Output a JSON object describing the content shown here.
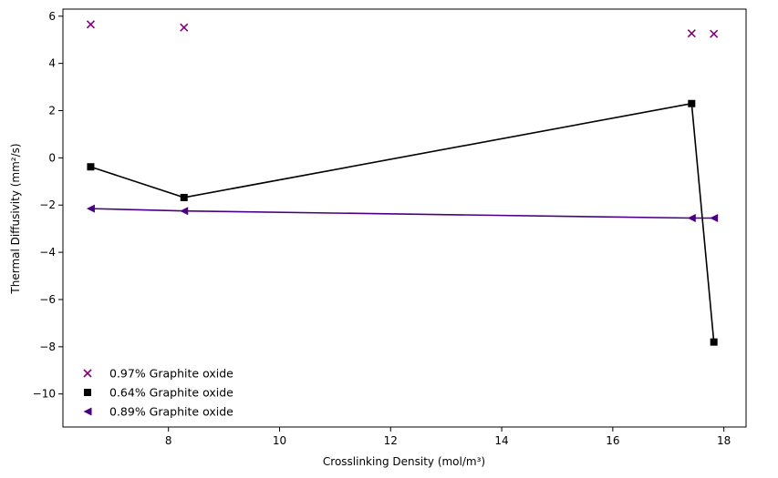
{
  "chart_data": {
    "type": "scatter",
    "xlabel": "Crosslinking Density (mol/m³)",
    "ylabel": "Thermal Diffusivity (mm²/s)",
    "xlim": [
      6.1,
      18.4
    ],
    "ylim": [
      -11.4,
      6.3
    ],
    "xticks": [
      8,
      10,
      12,
      14,
      16,
      18
    ],
    "yticks": [
      -10,
      -8,
      -6,
      -4,
      -2,
      0,
      2,
      4,
      6
    ],
    "grid": false,
    "legend_placement": "lower-left",
    "series": [
      {
        "name": "0.97% Graphite oxide",
        "marker": "x",
        "connected": false,
        "color": "#800080",
        "x": [
          6.6,
          8.28,
          17.42,
          17.82
        ],
        "y": [
          5.65,
          5.52,
          5.27,
          5.25
        ]
      },
      {
        "name": "0.64% Graphite oxide",
        "marker": "square",
        "connected": true,
        "color": "#000000",
        "x": [
          6.6,
          8.28,
          17.42,
          17.82
        ],
        "y": [
          -0.38,
          -1.68,
          2.3,
          -7.8
        ]
      },
      {
        "name": "0.89% Graphite oxide",
        "marker": "triangle-left",
        "connected": true,
        "color": "#4b0082",
        "x": [
          6.6,
          8.28,
          17.42,
          17.82
        ],
        "y": [
          -2.15,
          -2.25,
          -2.55,
          -2.55
        ]
      }
    ]
  }
}
